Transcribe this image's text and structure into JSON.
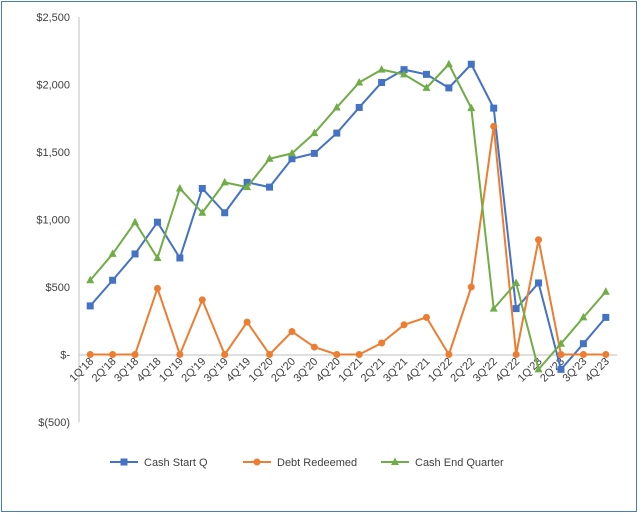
{
  "chart_data": {
    "type": "line",
    "categories": [
      "1Q'18",
      "2Q'18",
      "3Q'18",
      "4Q'18",
      "1Q'19",
      "2Q'19",
      "3Q'19",
      "4Q'19",
      "1Q'20",
      "2Q'20",
      "3Q'20",
      "4Q'20",
      "1Q'21",
      "2Q'21",
      "3Q'21",
      "4Q'21",
      "1Q'22",
      "2Q'22",
      "3Q'22",
      "4Q'22",
      "1Q'23",
      "2Q'23",
      "3Q'23",
      "4Q'23"
    ],
    "series": [
      {
        "name": "Cash Start Q",
        "color": "#4472c4",
        "marker": "square",
        "values": [
          360,
          550,
          745,
          980,
          715,
          1230,
          1050,
          1275,
          1240,
          1450,
          1490,
          1640,
          1830,
          2015,
          2110,
          2075,
          1975,
          2150,
          1825,
          340,
          530,
          -110,
          80,
          275
        ]
      },
      {
        "name": "Debt Redeemed",
        "color": "#ed7d31",
        "marker": "circle",
        "values": [
          0,
          0,
          0,
          490,
          0,
          405,
          0,
          240,
          0,
          170,
          55,
          0,
          0,
          85,
          220,
          275,
          0,
          500,
          1690,
          0,
          850,
          0,
          0,
          0
        ]
      },
      {
        "name": "Cash End Quarter",
        "color": "#70ad47",
        "marker": "triangle",
        "values": [
          550,
          745,
          980,
          715,
          1230,
          1050,
          1275,
          1240,
          1450,
          1490,
          1640,
          1830,
          2015,
          2110,
          2075,
          1975,
          2150,
          1825,
          340,
          530,
          -110,
          80,
          275,
          465
        ]
      }
    ],
    "yticks": [
      "$2,500",
      "$2,000",
      "$1,500",
      "$1,000",
      "$500",
      "$-",
      "$(500)"
    ],
    "ytick_values": [
      2500,
      2000,
      1500,
      1000,
      500,
      0,
      -500
    ],
    "ylim": [
      -500,
      2500
    ],
    "grid": false,
    "legend_position": "bottom",
    "title": "",
    "xlabel": "",
    "ylabel": ""
  }
}
